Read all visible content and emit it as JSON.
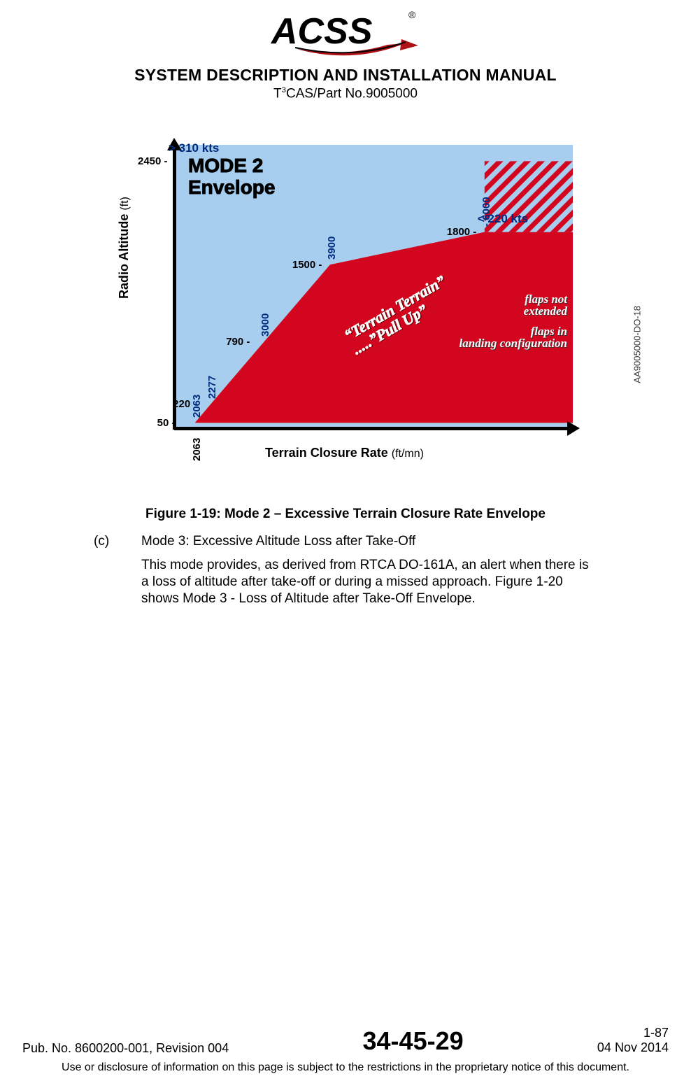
{
  "logo": {
    "text": "ACSS",
    "registered": "®",
    "accent1": "#000000",
    "accent2": "#b01116"
  },
  "header": {
    "title": "SYSTEM DESCRIPTION AND INSTALLATION MANUAL",
    "subtitle_pre": "T",
    "subtitle_sup": "3",
    "subtitle_post": "CAS/Part No.9005000"
  },
  "figure": {
    "side_code": "AA9005000-DO-18",
    "bg_color": "#a7cdef",
    "red_color": "#d2061e",
    "orange_color": "#f59b12",
    "hatch_color": "#d2061e",
    "mode_title_l1": "MODE 2",
    "mode_title_l2": "Envelope",
    "y_axis_label": "Radio Altitude",
    "y_axis_unit": "(ft)",
    "x_axis_label": "Terrain Closure Rate",
    "x_axis_unit": "(ft/mn)",
    "y_ticks": [
      {
        "v": 2450,
        "label": "2450 -",
        "speed": "> 310 kts"
      },
      {
        "v": 1800,
        "label": "1800 -",
        "speed": "< 220 kts"
      },
      {
        "v": 1500,
        "label": "1500 -"
      },
      {
        "v": 790,
        "label": "790 -"
      },
      {
        "v": 220,
        "label": "220 -"
      },
      {
        "v": 50,
        "label": "50 -"
      }
    ],
    "x_ticks": [
      {
        "v": 2063,
        "label": "2063",
        "color": "#002b7f"
      },
      {
        "v": 2277,
        "label": "2277",
        "color": "#002b7f"
      },
      {
        "v": 3000,
        "label": "3000",
        "color": "#002b7f"
      },
      {
        "v": 3900,
        "label": "3900",
        "color": "#002b7f"
      },
      {
        "v": 6000,
        "label": "- 6000",
        "color": "#002b7f",
        "ink": "#002b7f",
        "along_line": true
      }
    ],
    "pull_up_l1": "“Terrain Terrain”",
    "pull_up_l2": ".....”Pull Up”",
    "flaps_not_l1": "flaps not",
    "flaps_not_l2": "extended",
    "flaps_in_l1": "flaps in",
    "flaps_in_l2": "landing configuration",
    "y_range": [
      0,
      2600
    ],
    "x_range": [
      1800,
      7200
    ],
    "red_polygon": [
      [
        2063,
        50
      ],
      [
        2277,
        220
      ],
      [
        3000,
        790
      ],
      [
        3900,
        1500
      ],
      [
        6000,
        1800
      ],
      [
        7200,
        1800
      ],
      [
        7200,
        50
      ]
    ],
    "orange_polygon": [
      [
        2063,
        50
      ],
      [
        2277,
        220
      ],
      [
        3000,
        790
      ],
      [
        7200,
        790
      ],
      [
        7200,
        50
      ]
    ],
    "hatch_polygon": [
      [
        6000,
        1800
      ],
      [
        6000,
        2450
      ],
      [
        7200,
        2450
      ],
      [
        7200,
        1800
      ]
    ]
  },
  "caption": "Figure 1-19: Mode 2 – Excessive Terrain Closure Rate Envelope",
  "body": {
    "item_label": "(c)",
    "item_title": "Mode 3: Excessive Altitude Loss after Take-Off",
    "item_text": "This mode provides, as derived from RTCA DO-161A, an alert when there is a loss of altitude after take-off or during a missed approach. Figure 1-20 shows Mode 3 - Loss of Altitude after Take-Off Envelope."
  },
  "footer": {
    "pub": "Pub. No. 8600200-001, Revision 004",
    "center": "34-45-29",
    "page": "1-87",
    "date": "04 Nov 2014",
    "note": "Use or disclosure of information on this page is subject to the restrictions in the proprietary notice of this document."
  }
}
